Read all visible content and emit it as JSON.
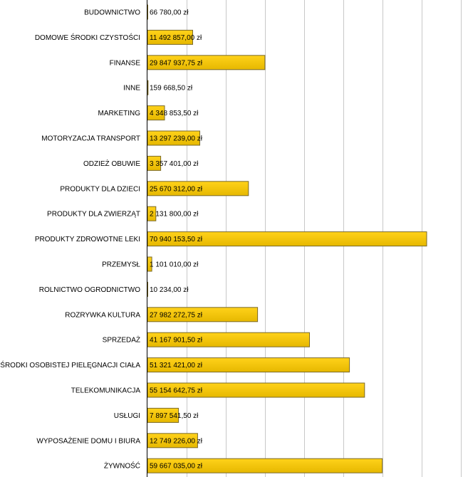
{
  "chart_data": {
    "type": "bar",
    "orientation": "horizontal",
    "title": "",
    "xlabel": "",
    "ylabel": "",
    "xlim": [
      0,
      77000000
    ],
    "grid": true,
    "bar_color": "#e6b800",
    "bar_color_light": "#ffd21a",
    "categories": [
      "BUDOWNICTWO",
      "DOMOWE ŚRODKI CZYSTOŚCI",
      "FINANSE",
      "INNE",
      "MARKETING",
      "MOTORYZACJA TRANSPORT",
      "ODZIEŻ OBUWIE",
      "PRODUKTY DLA DZIECI",
      "PRODUKTY DLA ZWIERZĄT",
      "PRODUKTY ZDROWOTNE LEKI",
      "PRZEMYSŁ",
      "ROLNICTWO OGRODNICTWO",
      "ROZRYWKA KULTURA",
      "SPRZEDAŻ",
      "ŚRODKI OSOBISTEJ PIELĘGNACJI CIAŁA",
      "TELEKOMUNIKACJA",
      "USŁUGI",
      "WYPOSAŻENIE DOMU I BIURA",
      "ŻYWNOŚĆ"
    ],
    "values": [
      66780.0,
      11492857.0,
      29847937.75,
      159668.5,
      4348853.5,
      13297239.0,
      3357401.0,
      25670312.0,
      2131800.0,
      70940153.5,
      1101010.0,
      10234.0,
      27982272.75,
      41167901.5,
      51321421.0,
      55154642.75,
      7897541.5,
      12749226.0,
      59667035.0
    ],
    "value_labels": [
      "66 780,00 zł",
      "11 492 857,00 zł",
      "29 847 937,75 zł",
      "159 668,50 zł",
      "4 348 853,50 zł",
      "13 297 239,00 zł",
      "3 357 401,00 zł",
      "25 670 312,00 zł",
      "2 131 800,00 zł",
      "70 940 153,50 zł",
      "1 101 010,00 zł",
      "10 234,00 zł",
      "27 982 272,75 zł",
      "41 167 901,50 zł",
      "51 321 421,00 zł",
      "55 154 642,75 zł",
      "7 897 541,50 zł",
      "12 749 226,00 zł",
      "59 667 035,00 zł"
    ]
  }
}
